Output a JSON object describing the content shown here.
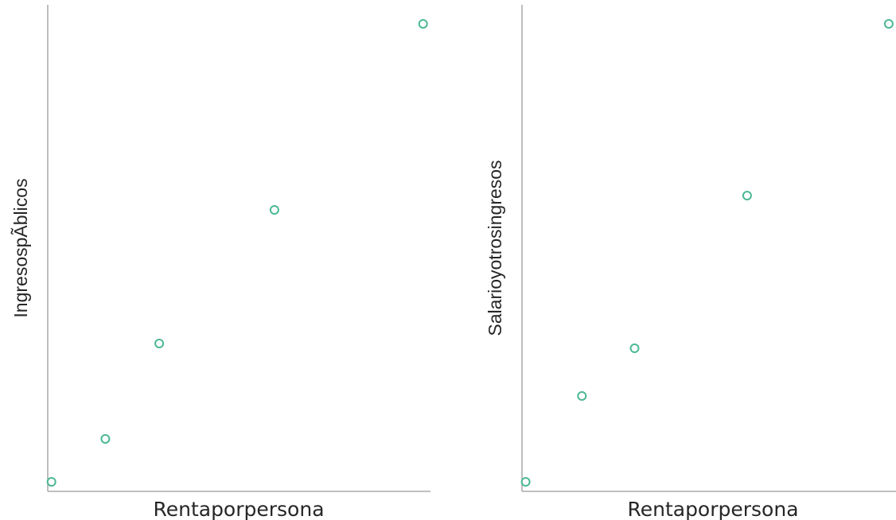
{
  "chart_data": [
    {
      "type": "scatter",
      "xlabel": "Rentaporpersona",
      "ylabel": "IngresospÃblicos",
      "x": [
        0.0,
        0.145,
        0.29,
        0.6,
        1.0
      ],
      "y": [
        0.0,
        0.09,
        0.29,
        0.57,
        0.96
      ],
      "xlim": [
        -0.01,
        1.02
      ],
      "ylim": [
        -0.02,
        1.0
      ],
      "grid": false,
      "point_color": "#4bb893"
    },
    {
      "type": "scatter",
      "xlabel": "Rentaporpersona",
      "ylabel": "Salarioyotrosingresos",
      "x": [
        0.0,
        0.155,
        0.3,
        0.61,
        1.0
      ],
      "y": [
        0.0,
        0.18,
        0.28,
        0.6,
        0.96
      ],
      "xlim": [
        -0.01,
        1.02
      ],
      "ylim": [
        -0.02,
        1.0
      ],
      "grid": false,
      "point_color": "#4bb893"
    }
  ]
}
